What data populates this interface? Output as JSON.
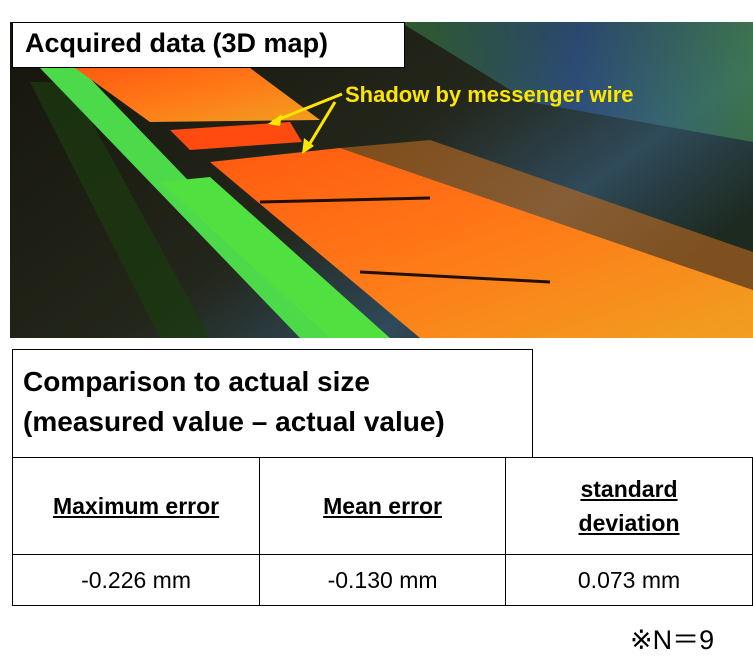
{
  "figure": {
    "label": "Acquired data (3D map)",
    "annotation": "Shadow by messenger wire"
  },
  "comparison": {
    "title_line1": "Comparison to actual size",
    "title_line2": "(measured value – actual value)"
  },
  "table": {
    "headers": [
      [
        "Maximum error"
      ],
      [
        "Mean error"
      ],
      [
        "standard",
        "deviation"
      ]
    ],
    "rows": [
      [
        "-0.226 mm",
        "-0.130 mm",
        "0.073 mm"
      ]
    ]
  },
  "note": "※N＝9"
}
